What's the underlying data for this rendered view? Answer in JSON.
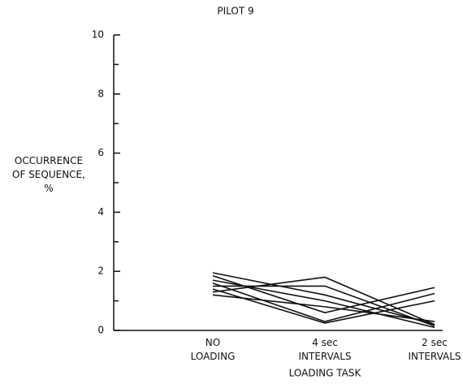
{
  "chart_data": {
    "type": "line",
    "title": "PILOT 9",
    "y_label": "OCCURRENCE\nOF SEQUENCE,\n%",
    "x_label": "LOADING TASK",
    "categories": [
      "NO\nLOADING",
      "4 sec\nINTERVALS",
      "2 sec\nINTERVALS"
    ],
    "series": [
      {
        "color": "#111111",
        "values": [
          1.3,
          1.8,
          0.2
        ]
      },
      {
        "color": "#111111",
        "values": [
          1.95,
          1.2,
          0.2
        ]
      },
      {
        "color": "#111111",
        "values": [
          1.85,
          0.6,
          1.45
        ]
      },
      {
        "color": "#111111",
        "values": [
          1.6,
          0.3,
          1.25
        ]
      },
      {
        "color": "#111111",
        "values": [
          1.4,
          0.25,
          1.0
        ]
      },
      {
        "color": "#111111",
        "values": [
          1.5,
          1.5,
          0.15
        ]
      },
      {
        "color": "#111111",
        "values": [
          1.2,
          0.8,
          0.3
        ]
      },
      {
        "color": "#111111",
        "values": [
          1.7,
          1.0,
          0.1
        ]
      }
    ],
    "ylim": [
      0,
      10
    ],
    "yticks": [
      0,
      2,
      4,
      6,
      8,
      10
    ],
    "yminorticks": [
      1,
      3,
      5,
      7,
      9
    ],
    "grid": false
  }
}
